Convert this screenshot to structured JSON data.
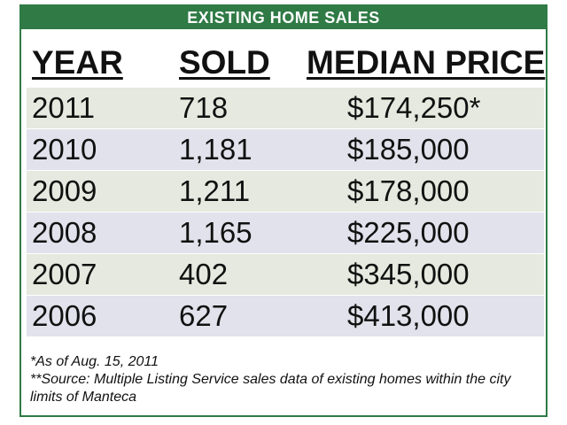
{
  "banner": {
    "title": "EXISTING HOME SALES"
  },
  "colors": {
    "banner_bg": "#2f7a45",
    "row_shade_green": "#e5e9df",
    "row_shade_lavender": "#e2e2ec"
  },
  "table": {
    "headers": {
      "year": "YEAR",
      "sold": "SOLD",
      "price": "MEDIAN PRICE"
    },
    "rows": [
      {
        "year": "2011",
        "sold": "718",
        "price": "$174,250*"
      },
      {
        "year": "2010",
        "sold": "1,181",
        "price": "$185,000"
      },
      {
        "year": "2009",
        "sold": "1,211",
        "price": "$178,000"
      },
      {
        "year": "2008",
        "sold": "1,165",
        "price": "$225,000"
      },
      {
        "year": "2007",
        "sold": "402",
        "price": "$345,000"
      },
      {
        "year": "2006",
        "sold": "627",
        "price": "$413,000"
      }
    ]
  },
  "notes": {
    "asof": "*As of Aug. 15, 2011",
    "source": "**Source: Multiple Listing Service sales data of existing homes within the city limits of Manteca"
  }
}
